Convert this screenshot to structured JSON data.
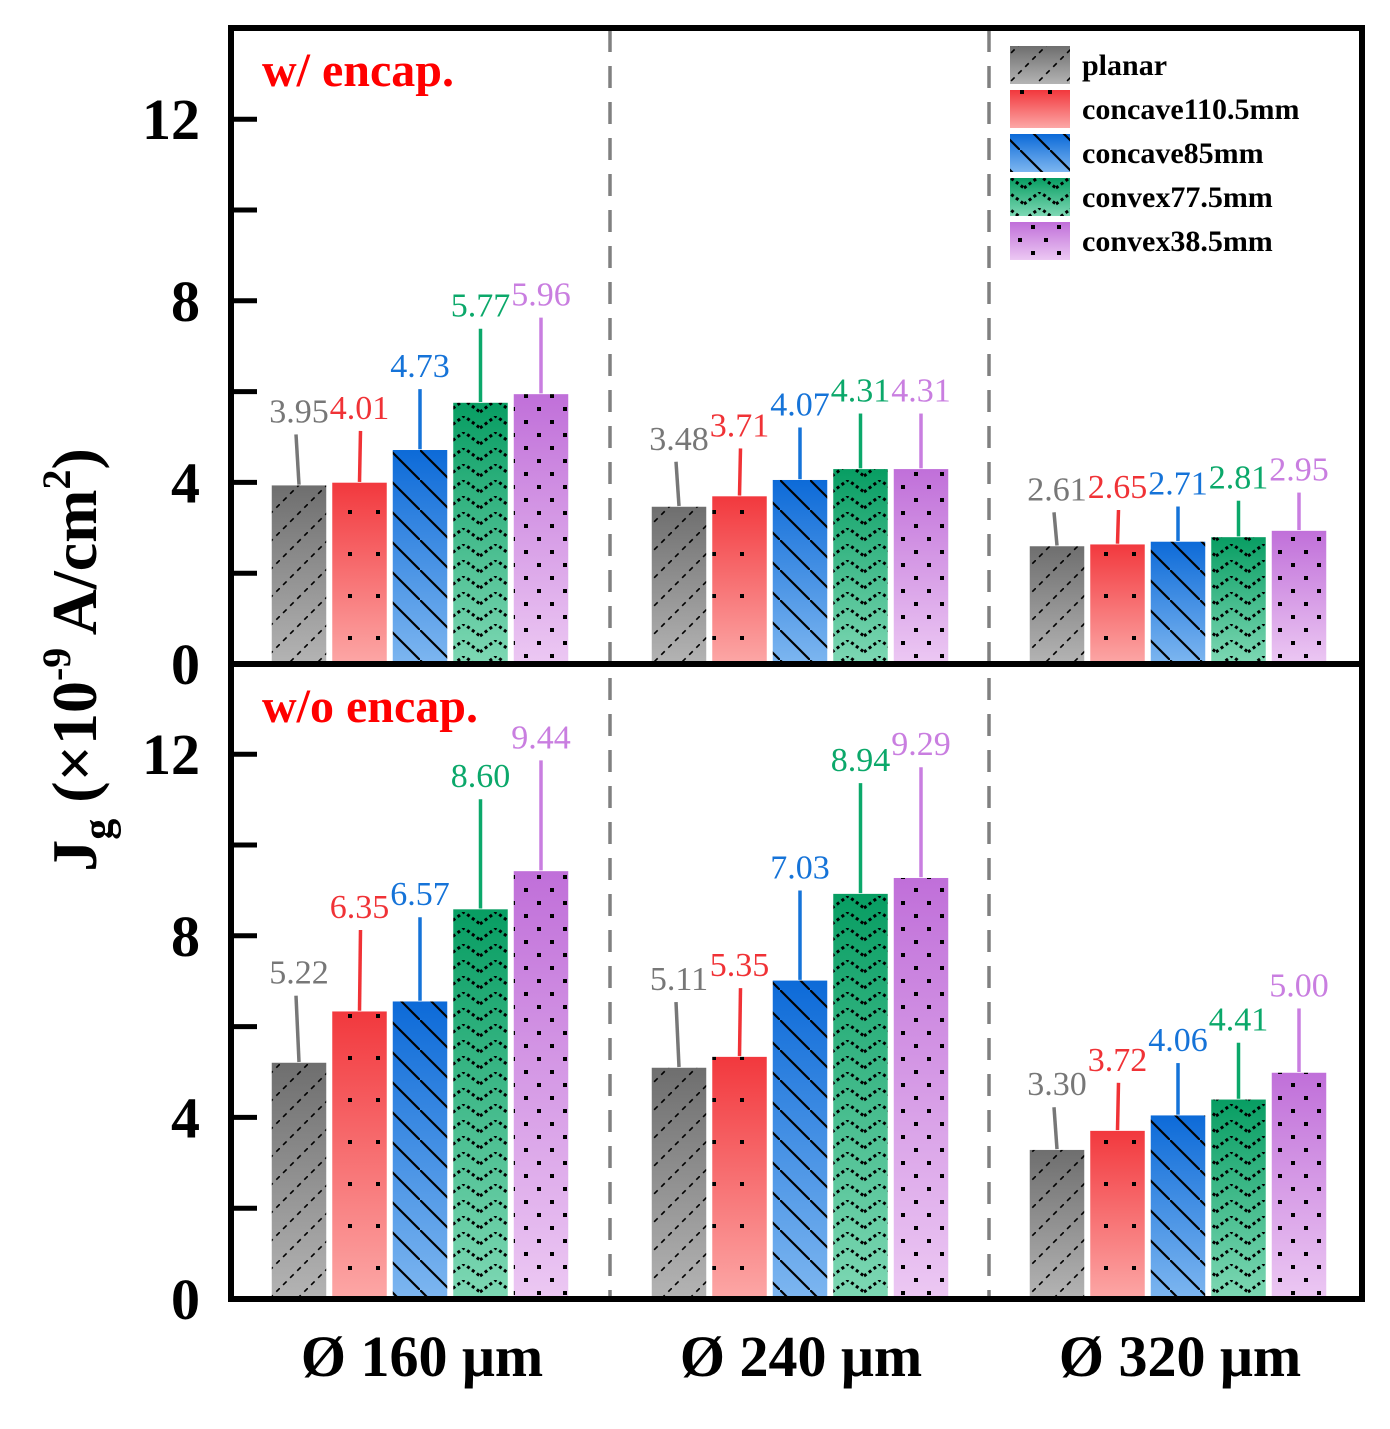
{
  "chart_data": {
    "type": "bar",
    "ylabel": "Jg (×10-9 A/cm2)",
    "ylabel_parts": {
      "main": "J",
      "sub": "g",
      "open": " (×10",
      "exp": "-9",
      "unit": " A/cm",
      "unit_exp": "2",
      "close": ")"
    },
    "categories": [
      "Ø 160 μm",
      "Ø 240 μm",
      "Ø 320 μm"
    ],
    "ylim": [
      0,
      14
    ],
    "yticks": [
      "0",
      "4",
      "8",
      "12"
    ],
    "legend_position": "top-right",
    "series_styles": [
      {
        "name": "planar",
        "color_top": "#6e6e6e",
        "color_bottom": "#b4b4b4",
        "label_color": "#777777",
        "pattern": "diag-fwd"
      },
      {
        "name": "concave110.5mm",
        "color_top": "#f2383d",
        "color_bottom": "#fca7a6",
        "label_color": "#f03236",
        "pattern": "dots-sparse"
      },
      {
        "name": "concave85mm",
        "color_top": "#0c6ad8",
        "color_bottom": "#7db6f0",
        "label_color": "#1573d8",
        "pattern": "diag-back"
      },
      {
        "name": "convex77.5mm",
        "color_top": "#079d62",
        "color_bottom": "#7ed8b4",
        "label_color": "#0ba86a",
        "pattern": "zigzag"
      },
      {
        "name": "convex38.5mm",
        "color_top": "#c06fd9",
        "color_bottom": "#ecc8f3",
        "label_color": "#c97ee0",
        "pattern": "dots-dense"
      }
    ],
    "panels": [
      {
        "title": "w/ encap.",
        "series": [
          {
            "name": "planar",
            "values": [
              3.95,
              3.48,
              2.61
            ],
            "labels": [
              "3.95",
              "3.48",
              "2.61"
            ]
          },
          {
            "name": "concave110.5mm",
            "values": [
              4.01,
              3.71,
              2.65
            ],
            "labels": [
              "4.01",
              "3.71",
              "2.65"
            ]
          },
          {
            "name": "concave85mm",
            "values": [
              4.73,
              4.07,
              2.71
            ],
            "labels": [
              "4.73",
              "4.07",
              "2.71"
            ]
          },
          {
            "name": "convex77.5mm",
            "values": [
              5.77,
              4.31,
              2.81
            ],
            "labels": [
              "5.77",
              "4.31",
              "2.81"
            ]
          },
          {
            "name": "convex38.5mm",
            "values": [
              5.96,
              4.31,
              2.95
            ],
            "labels": [
              "5.96",
              "4.31",
              "2.95"
            ]
          }
        ]
      },
      {
        "title": "w/o encap.",
        "series": [
          {
            "name": "planar",
            "values": [
              5.22,
              5.11,
              3.3
            ],
            "labels": [
              "5.22",
              "5.11",
              "3.30"
            ]
          },
          {
            "name": "concave110.5mm",
            "values": [
              6.35,
              5.35,
              3.72
            ],
            "labels": [
              "6.35",
              "5.35",
              "3.72"
            ]
          },
          {
            "name": "concave85mm",
            "values": [
              6.57,
              7.03,
              4.06
            ],
            "labels": [
              "6.57",
              "7.03",
              "4.06"
            ]
          },
          {
            "name": "convex77.5mm",
            "values": [
              8.6,
              8.94,
              4.41
            ],
            "labels": [
              "8.60",
              "8.94",
              "4.41"
            ]
          },
          {
            "name": "convex38.5mm",
            "values": [
              9.44,
              9.29,
              5.0
            ],
            "labels": [
              "9.44",
              "9.29",
              "5.00"
            ]
          }
        ]
      }
    ]
  }
}
